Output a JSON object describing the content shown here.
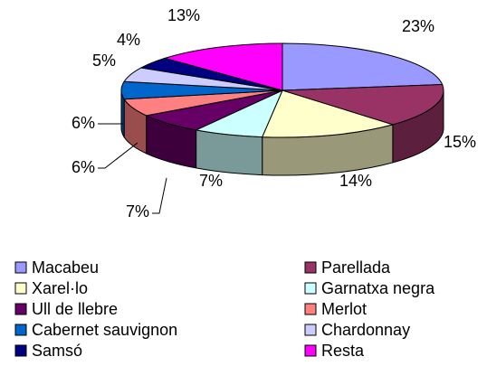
{
  "chart_data": {
    "type": "pie",
    "categories": [
      "Macabeu",
      "Parellada",
      "Xarel·lo",
      "Garnatxa negra",
      "Ull de llebre",
      "Merlot",
      "Cabernet sauvignon",
      "Chardonnay",
      "Samsó",
      "Resta"
    ],
    "values": [
      23,
      15,
      14,
      7,
      7,
      6,
      6,
      5,
      4,
      13
    ],
    "value_labels": [
      "23%",
      "15%",
      "14%",
      "7%",
      "7%",
      "6%",
      "6%",
      "5%",
      "4%",
      "13%"
    ],
    "colors": [
      "#9999ff",
      "#993366",
      "#ffffcc",
      "#ccffff",
      "#660066",
      "#ff8080",
      "#0066cc",
      "#ccccff",
      "#000080",
      "#ff00ff"
    ],
    "legend": "bottom"
  }
}
